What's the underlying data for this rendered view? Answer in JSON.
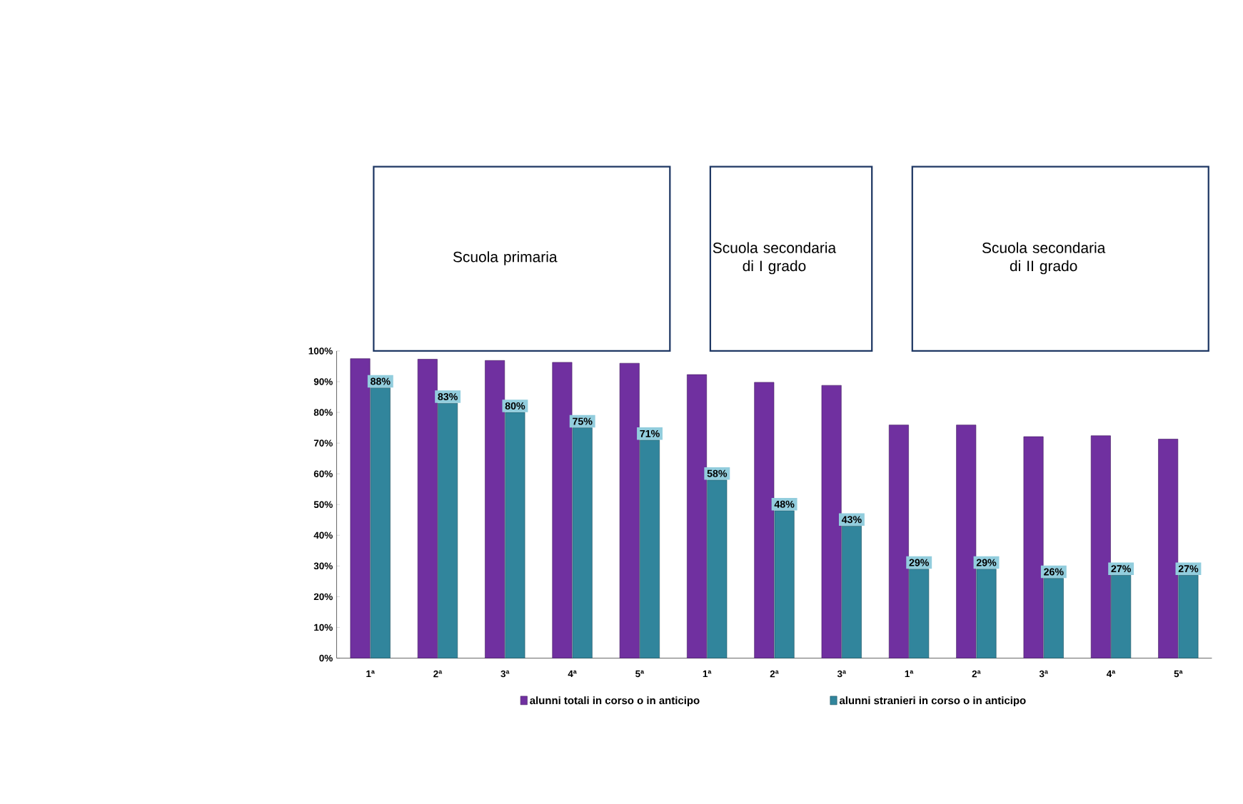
{
  "chart_data": {
    "type": "bar",
    "categories": [
      "1ª",
      "2ª",
      "3ª",
      "4ª",
      "5ª",
      "1ª",
      "2ª",
      "3ª",
      "1ª",
      "2ª",
      "3ª",
      "4ª",
      "5ª"
    ],
    "annotations": [
      "Scuola primaria",
      "Scuola secondaria di I grado",
      "Scuola secondaria di II grado"
    ],
    "series": [
      {
        "name": "alunni totali in corso o in anticipo",
        "color": "#7030a0",
        "values": [
          97.5,
          97.3,
          96.9,
          96.3,
          96.0,
          92.3,
          89.8,
          88.8,
          75.9,
          75.9,
          72.1,
          72.4,
          71.3
        ]
      },
      {
        "name": "alunni stranieri in corso o in anticipo",
        "color": "#31859c",
        "values": [
          88,
          83,
          80,
          75,
          71,
          58,
          48,
          43,
          29,
          29,
          26,
          27,
          27
        ],
        "value_labels": [
          "88%",
          "83%",
          "80%",
          "75%",
          "71%",
          "58%",
          "48%",
          "43%",
          "29%",
          "29%",
          "26%",
          "27%",
          "27%"
        ]
      }
    ],
    "ylim": [
      0,
      100
    ],
    "yticks": [
      {
        "value": 0,
        "label": "0%"
      },
      {
        "value": 10,
        "label": "10%"
      },
      {
        "value": 20,
        "label": "20%"
      },
      {
        "value": 30,
        "label": "30%"
      },
      {
        "value": 40,
        "label": "40%"
      },
      {
        "value": 50,
        "label": "50%"
      },
      {
        "value": 60,
        "label": "60%"
      },
      {
        "value": 70,
        "label": "70%"
      },
      {
        "value": 80,
        "label": "80%"
      },
      {
        "value": 90,
        "label": "90%"
      },
      {
        "value": 100,
        "label": "100%"
      }
    ],
    "legend": "bottom"
  }
}
